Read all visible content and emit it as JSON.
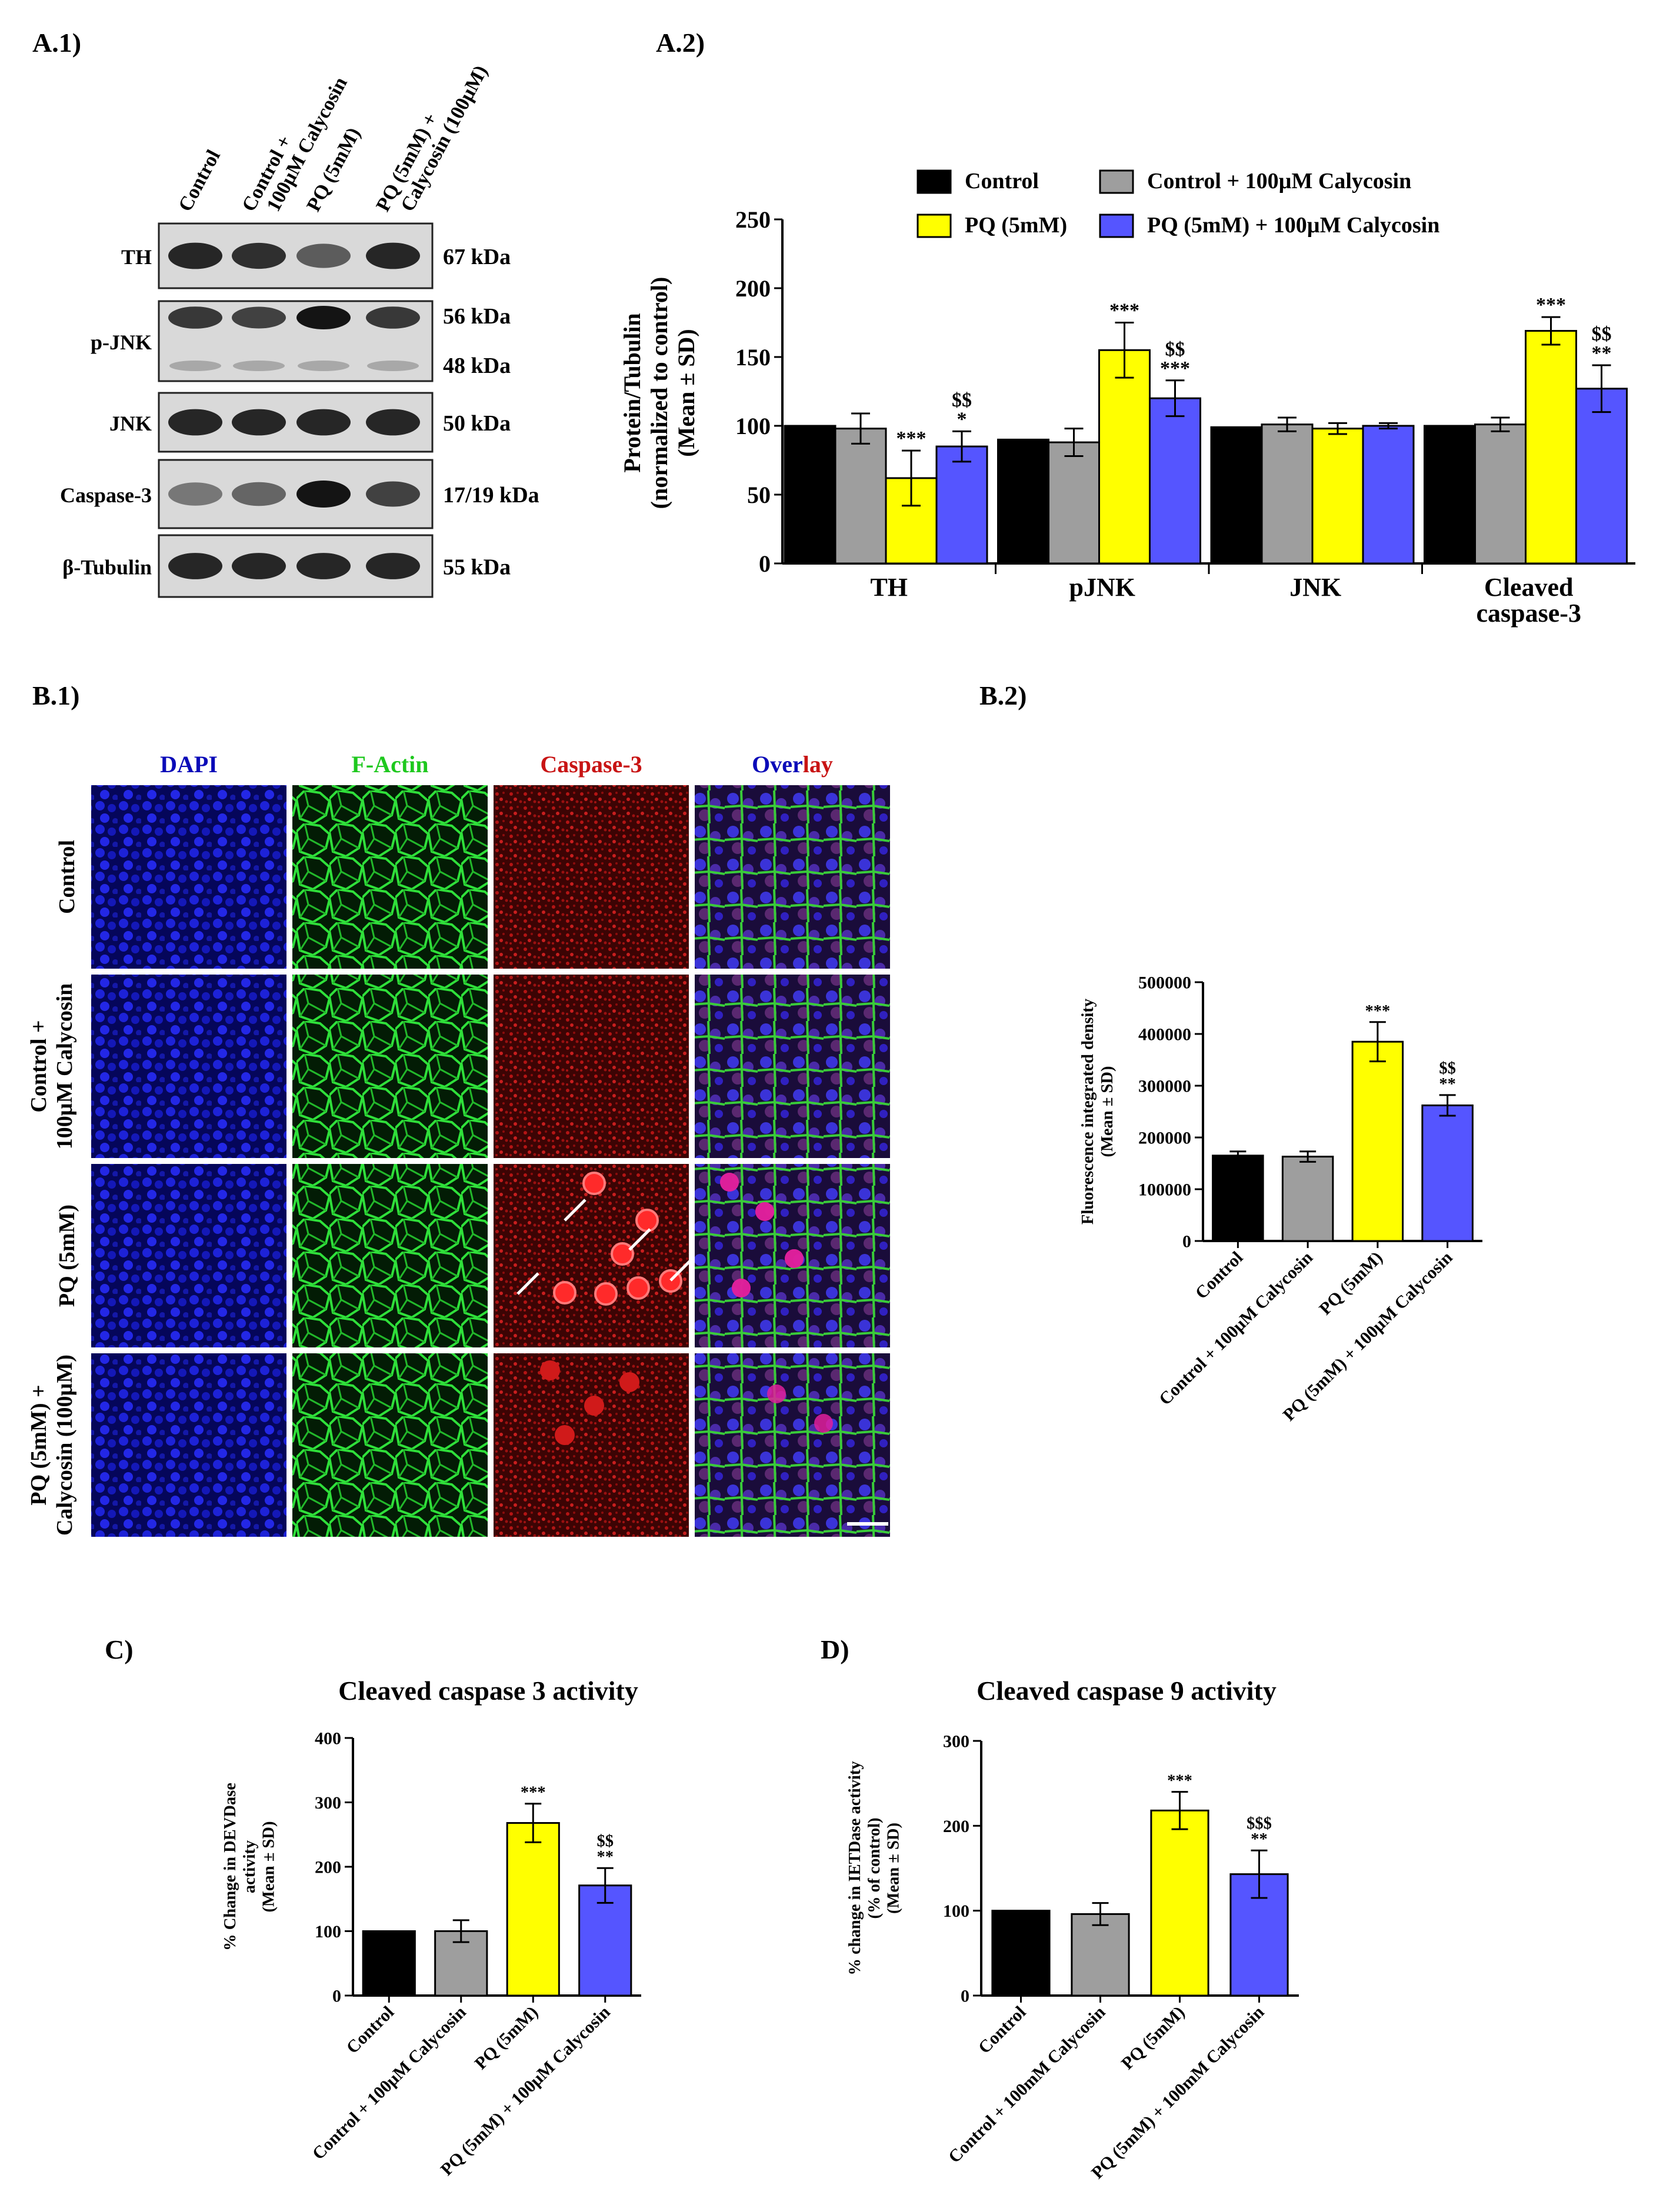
{
  "colors": {
    "control": "#000000",
    "control_caly": "#9e9e9e",
    "pq": "#ffff00",
    "pq_caly": "#5555ff",
    "dapi": "#0a0ab8",
    "factin": "#1ec81e",
    "casp": "#c81414"
  },
  "panels": {
    "a1": "A.1)",
    "a2": "A.2)",
    "b1": "B.1)",
    "b2": "B.2)",
    "c": "C)",
    "d": "D)"
  },
  "western": {
    "lanes": [
      "Control",
      "Control + 100µM Calycosin",
      "PQ (5mM)",
      "PQ (5mM) + Calycosin (100µM)"
    ],
    "rows": [
      {
        "name": "TH",
        "sizes": [
          "67 kDa"
        ],
        "intensity": [
          0.9,
          0.85,
          0.6,
          0.9
        ]
      },
      {
        "name": "p-JNK",
        "sizes": [
          "56 kDa",
          "48 kDa"
        ],
        "intensity": [
          0.8,
          0.75,
          1.0,
          0.8
        ]
      },
      {
        "name": "JNK",
        "sizes": [
          "50 kDa"
        ],
        "intensity": [
          0.9,
          0.9,
          0.9,
          0.9
        ]
      },
      {
        "name": "Caspase-3",
        "sizes": [
          "17/19 kDa"
        ],
        "intensity": [
          0.45,
          0.55,
          1.0,
          0.75
        ]
      },
      {
        "name": "β-Tubulin",
        "sizes": [
          "55 kDa"
        ],
        "intensity": [
          0.9,
          0.9,
          0.9,
          0.9
        ]
      }
    ]
  },
  "micro": {
    "columns": [
      "DAPI",
      "F-Actin",
      "Caspase-3",
      "Over",
      "lay"
    ],
    "rows": [
      "Control",
      "Control + 100µM Calycosin",
      "PQ (5mM)",
      "PQ (5mM) + Calycosin (100µM)"
    ]
  },
  "chart_data": [
    {
      "id": "a2",
      "type": "bar",
      "ylabel": "Protein/Tubulin (normalized to control) (Mean ± SD)",
      "ylim": [
        0,
        250
      ],
      "yticks": [
        0,
        50,
        100,
        150,
        200,
        250
      ],
      "categories": [
        "TH",
        "pJNK",
        "JNK",
        "Cleaved caspase-3"
      ],
      "legend": {
        "position": "top",
        "entries": [
          "Control",
          "Control  +  100µM  Calycosin",
          "PQ (5mM)",
          "PQ  (5mM)  +  100µM  Calycosin"
        ]
      },
      "series": [
        {
          "name": "Control",
          "values": [
            100,
            90,
            99,
            100
          ],
          "err": [
            0,
            0,
            0,
            0
          ],
          "sig": [
            "",
            "",
            "",
            ""
          ]
        },
        {
          "name": "Control + 100µM Calycosin",
          "values": [
            98,
            88,
            101,
            101
          ],
          "err": [
            11,
            10,
            5,
            5
          ],
          "sig": [
            "",
            "",
            "",
            ""
          ]
        },
        {
          "name": "PQ (5mM)",
          "values": [
            62,
            155,
            98,
            169
          ],
          "err": [
            20,
            20,
            4,
            10
          ],
          "sig": [
            "***",
            "***",
            "",
            "***"
          ]
        },
        {
          "name": "PQ (5mM) + 100µM Calycosin",
          "values": [
            85,
            120,
            100,
            127
          ],
          "err": [
            11,
            13,
            2,
            17
          ],
          "sig": [
            "$$ *",
            "$$ ***",
            "",
            "$$ **"
          ]
        }
      ]
    },
    {
      "id": "b2",
      "type": "bar",
      "ylabel": "Fluorescence integrated density (Mean ± SD)",
      "ylim": [
        0,
        500000
      ],
      "yticks": [
        0,
        100000,
        200000,
        300000,
        400000,
        500000
      ],
      "categories": [
        "Control",
        "Control + 100µM Calycosin",
        "PQ (5mM)",
        "PQ (5mM) + 100µM Calycosin"
      ],
      "values": [
        165000,
        163000,
        385000,
        262000
      ],
      "err": [
        8000,
        10000,
        38000,
        20000
      ],
      "sig": [
        "",
        "",
        "***",
        "$$ **"
      ]
    },
    {
      "id": "c",
      "type": "bar",
      "title": "Cleaved caspase 3 activity",
      "ylabel": "% Change in DEVDase activity (Mean ± SD)",
      "ylim": [
        0,
        400
      ],
      "yticks": [
        0,
        100,
        200,
        300,
        400
      ],
      "categories": [
        "Control",
        "Control + 100µM Calycosin",
        "PQ (5mM)",
        "PQ (5mM) + 100µM Calycosin"
      ],
      "values": [
        100,
        100,
        268,
        171
      ],
      "err": [
        0,
        17,
        30,
        27
      ],
      "sig": [
        "",
        "",
        "***",
        "$$ **"
      ]
    },
    {
      "id": "d",
      "type": "bar",
      "title": "Cleaved caspase 9 activity",
      "ylabel": "% change in IETDase activity (% of control) (Mean ± SD)",
      "ylim": [
        0,
        300
      ],
      "yticks": [
        0,
        100,
        200,
        300
      ],
      "categories": [
        "Control",
        "Control + 100mM Calycosin",
        "PQ (5mM)",
        "PQ (5mM) + 100mM Calycosin"
      ],
      "values": [
        100,
        96,
        218,
        143
      ],
      "err": [
        0,
        13,
        22,
        28
      ],
      "sig": [
        "",
        "",
        "***",
        "$$$ **"
      ]
    }
  ]
}
